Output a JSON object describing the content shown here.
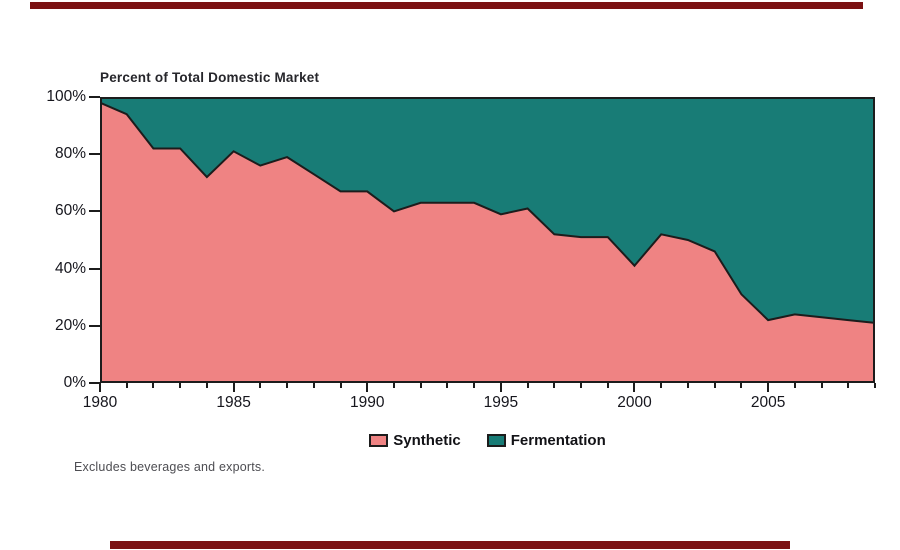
{
  "decorations": {
    "top_bar_color": "#7b1113",
    "bottom_bar_color": "#7b1113"
  },
  "footnote": "Excludes beverages and exports.",
  "chart_data": {
    "type": "area",
    "stacked": true,
    "title": "Percent of Total Domestic Market",
    "x": [
      1980,
      1981,
      1982,
      1983,
      1984,
      1985,
      1986,
      1987,
      1988,
      1989,
      1990,
      1991,
      1992,
      1993,
      1994,
      1995,
      1996,
      1997,
      1998,
      1999,
      2000,
      2001,
      2002,
      2003,
      2004,
      2005,
      2006,
      2007,
      2008,
      2009
    ],
    "series": [
      {
        "name": "Synthetic",
        "color": "#ef8383",
        "values": [
          98,
          94,
          82,
          82,
          72,
          81,
          76,
          79,
          73,
          67,
          67,
          60,
          63,
          63,
          63,
          59,
          61,
          52,
          51,
          51,
          41,
          52,
          50,
          46,
          31,
          22,
          24,
          23,
          22,
          21
        ]
      },
      {
        "name": "Fermentation",
        "color": "#187c76",
        "values": [
          2,
          6,
          18,
          18,
          28,
          19,
          24,
          21,
          27,
          33,
          33,
          40,
          37,
          37,
          37,
          41,
          39,
          48,
          49,
          49,
          59,
          48,
          50,
          54,
          69,
          78,
          76,
          77,
          78,
          79
        ]
      }
    ],
    "xlabel": "",
    "ylabel": "Percent of Total Domestic Market",
    "x_range": [
      1980,
      2009
    ],
    "ylim": [
      0,
      100
    ],
    "yticks": [
      0,
      20,
      40,
      60,
      80,
      100
    ],
    "ytick_labels": [
      "0%",
      "20%",
      "40%",
      "60%",
      "80%",
      "100%"
    ],
    "xtick_major": [
      1980,
      1985,
      1990,
      1995,
      2000,
      2005
    ],
    "xtick_minor_step": 1,
    "grid": false,
    "legend_position": "bottom-center",
    "line_color": "#1c1c1c"
  }
}
